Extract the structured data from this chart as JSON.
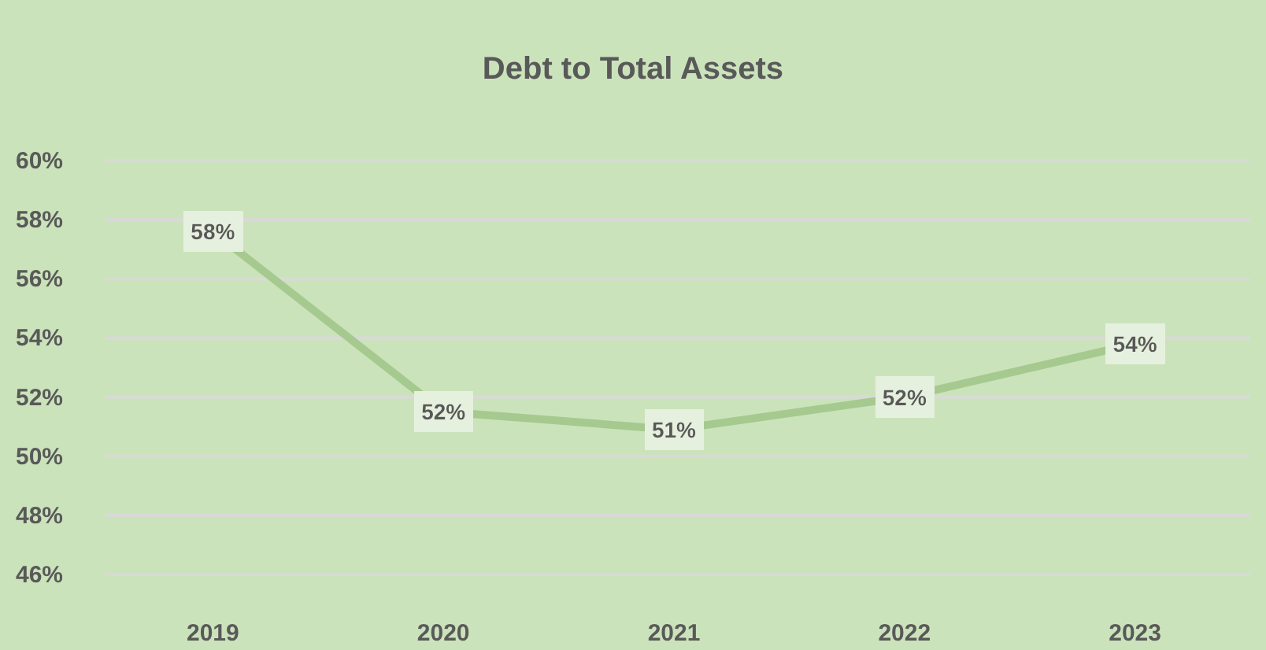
{
  "chart_data": {
    "type": "line",
    "title": "Debt to Total Assets",
    "categories": [
      "2019",
      "2020",
      "2021",
      "2022",
      "2023"
    ],
    "series": [
      {
        "color": "#a6c98f",
        "values": [
          57.6,
          51.5,
          50.9,
          52.0,
          53.8
        ],
        "value_labels": [
          "58%",
          "52%",
          "51%",
          "52%",
          "54%"
        ]
      }
    ],
    "ylim": [
      46,
      60
    ],
    "yticks": [
      {
        "value": 46,
        "label": "46%"
      },
      {
        "value": 48,
        "label": "48%"
      },
      {
        "value": 50,
        "label": "50%"
      },
      {
        "value": 52,
        "label": "52%"
      },
      {
        "value": 54,
        "label": "54%"
      },
      {
        "value": 56,
        "label": "56%"
      },
      {
        "value": 58,
        "label": "58%"
      },
      {
        "value": 60,
        "label": "60%"
      }
    ],
    "grid": "y",
    "line_style": "solid"
  }
}
